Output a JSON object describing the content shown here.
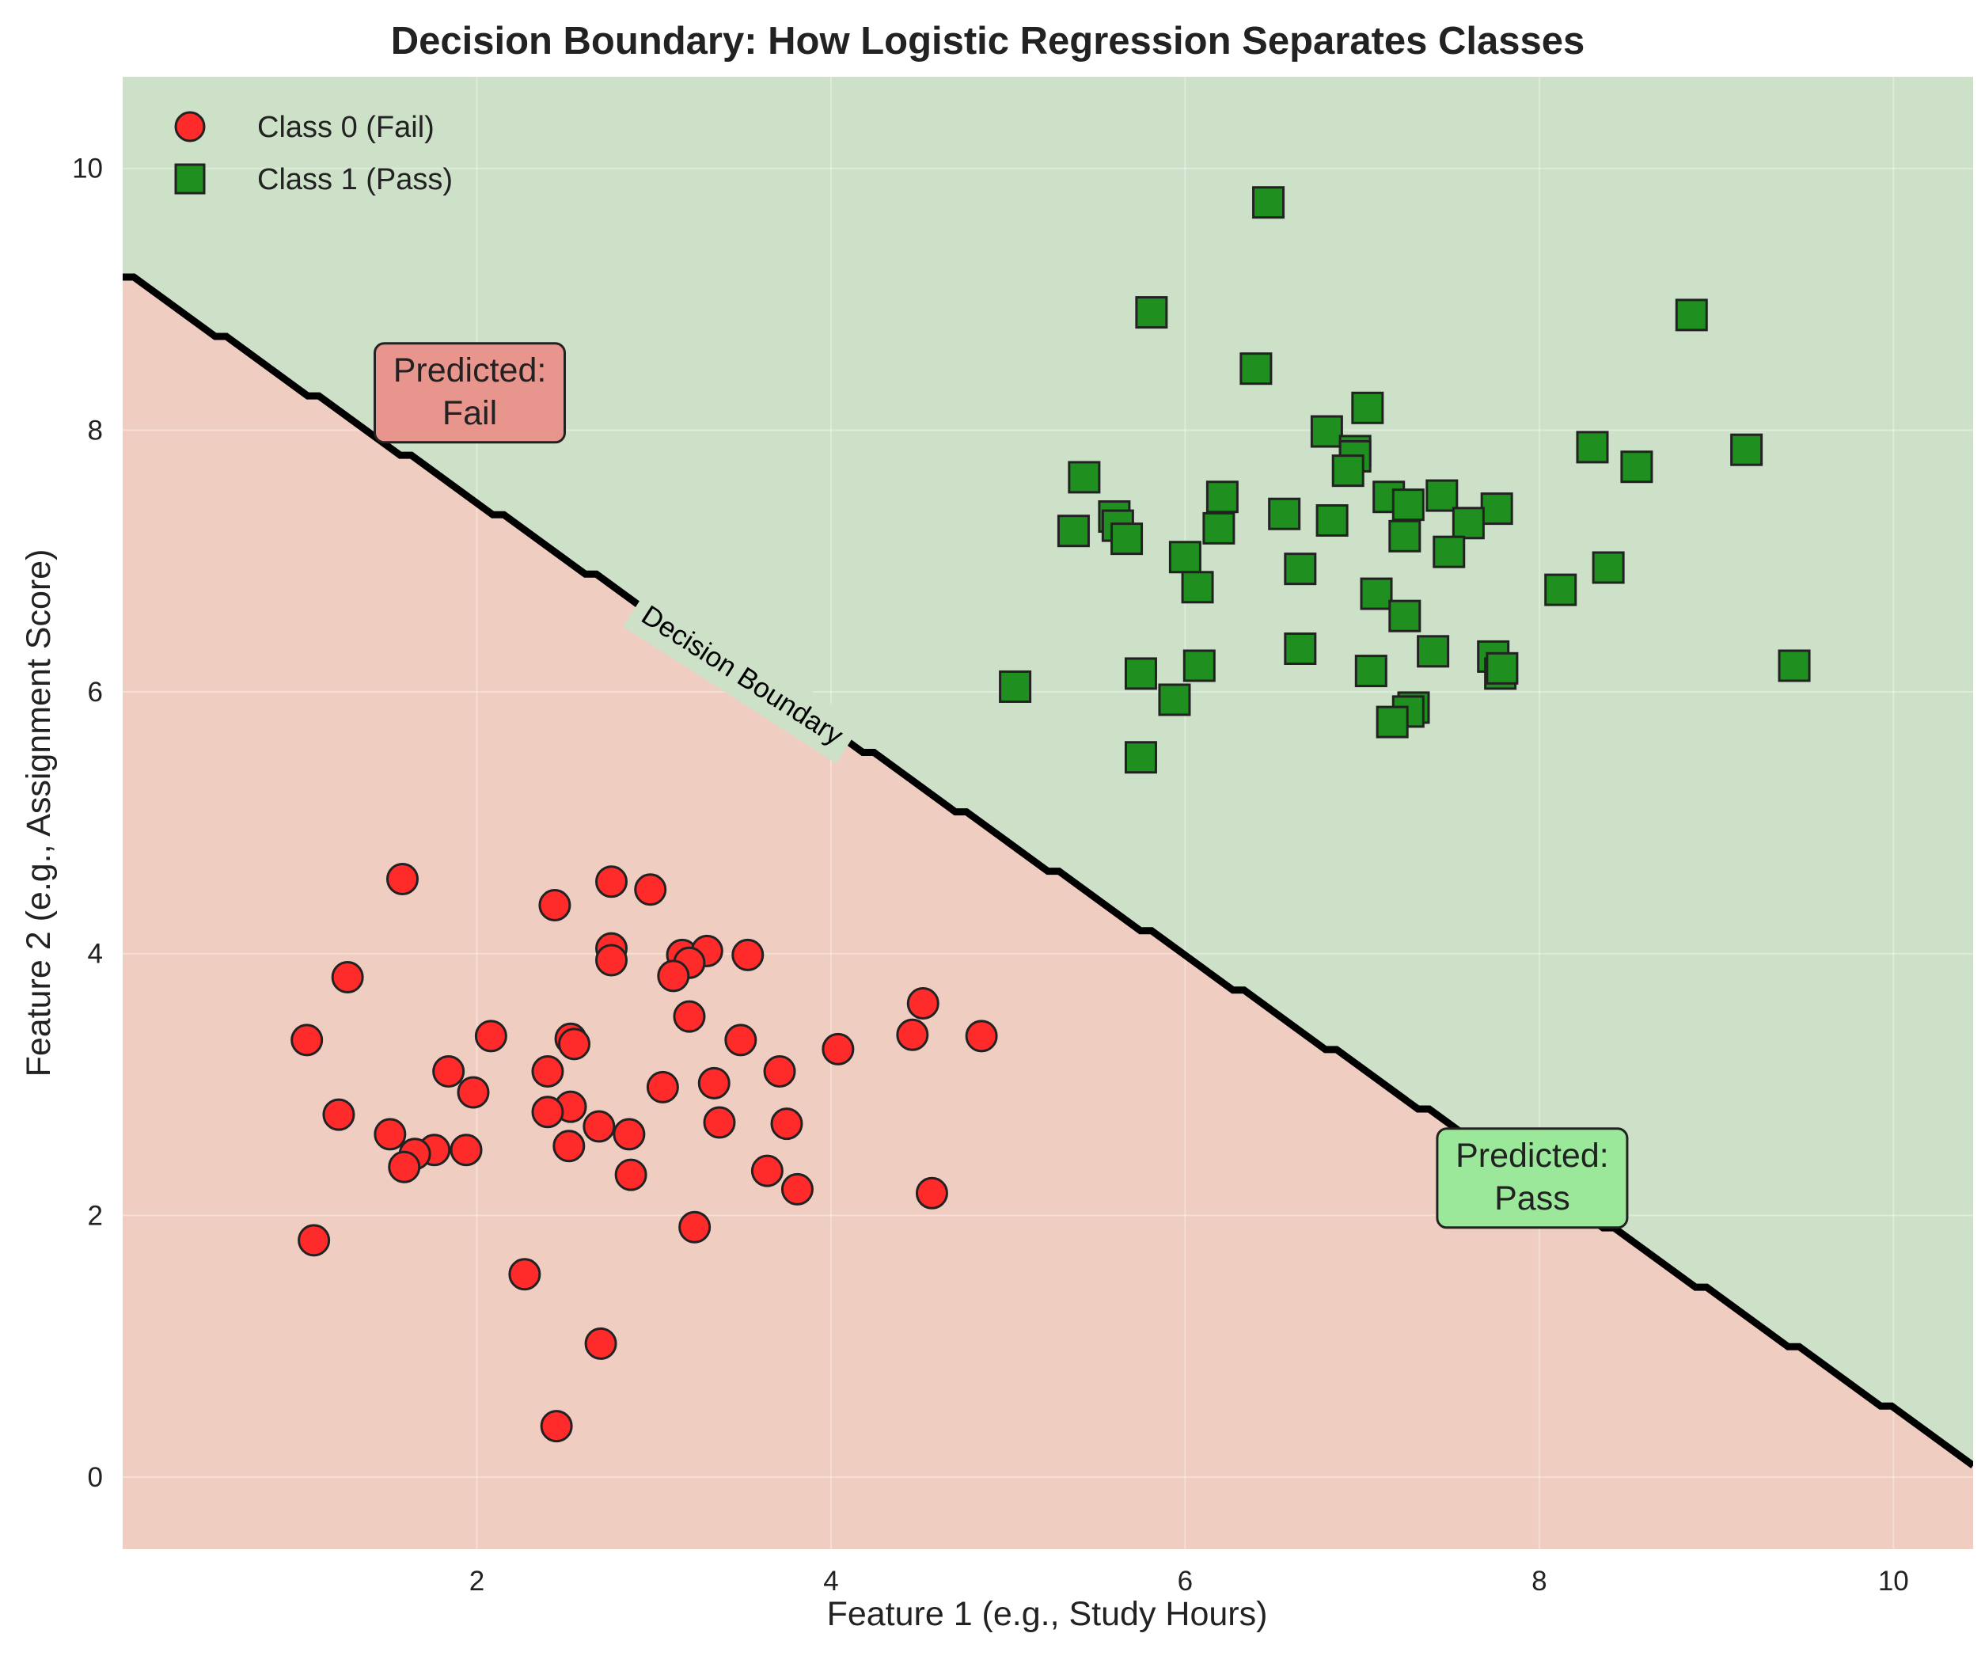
{
  "chart_data": {
    "type": "scatter",
    "title": "Decision Boundary: How Logistic Regression Separates Classes",
    "xlabel": "Feature 1 (e.g., Study Hours)",
    "ylabel": "Feature 2 (e.g., Assignment Score)",
    "xlim": [
      0.0,
      10.45
    ],
    "ylim": [
      -0.55,
      10.7
    ],
    "xticks": [
      2,
      4,
      6,
      8,
      10
    ],
    "yticks": [
      0,
      2,
      4,
      6,
      8,
      10
    ],
    "grid": true,
    "legend_position": "top-left",
    "colors": {
      "fail_region": "#efcdc1",
      "pass_region": "#cde0c8",
      "class0_marker": "#ff2b2b",
      "class1_marker": "#1f8f1f",
      "boundary": "#000000",
      "fail_box": "#e8958e",
      "pass_box": "#9be89b"
    },
    "series": [
      {
        "name": "Class 0 (Fail)",
        "marker": "circle",
        "points": [
          [
            1.58,
            4.57
          ],
          [
            2.76,
            4.55
          ],
          [
            2.98,
            4.49
          ],
          [
            2.44,
            4.37
          ],
          [
            2.76,
            4.04
          ],
          [
            3.16,
            3.99
          ],
          [
            3.3,
            4.02
          ],
          [
            3.53,
            3.99
          ],
          [
            2.76,
            3.95
          ],
          [
            3.2,
            3.93
          ],
          [
            1.27,
            3.82
          ],
          [
            3.11,
            3.83
          ],
          [
            4.52,
            3.62
          ],
          [
            3.2,
            3.52
          ],
          [
            1.04,
            3.34
          ],
          [
            2.08,
            3.37
          ],
          [
            2.53,
            3.35
          ],
          [
            2.55,
            3.31
          ],
          [
            3.49,
            3.34
          ],
          [
            4.46,
            3.38
          ],
          [
            4.85,
            3.37
          ],
          [
            4.04,
            3.27
          ],
          [
            2.4,
            3.1
          ],
          [
            1.84,
            3.1
          ],
          [
            3.71,
            3.1
          ],
          [
            3.34,
            3.01
          ],
          [
            3.05,
            2.98
          ],
          [
            1.98,
            2.94
          ],
          [
            2.53,
            2.83
          ],
          [
            2.4,
            2.79
          ],
          [
            1.22,
            2.77
          ],
          [
            3.37,
            2.71
          ],
          [
            3.75,
            2.7
          ],
          [
            2.69,
            2.68
          ],
          [
            2.86,
            2.62
          ],
          [
            1.51,
            2.62
          ],
          [
            2.52,
            2.53
          ],
          [
            1.76,
            2.5
          ],
          [
            1.94,
            2.5
          ],
          [
            1.65,
            2.47
          ],
          [
            1.59,
            2.37
          ],
          [
            2.87,
            2.31
          ],
          [
            3.64,
            2.34
          ],
          [
            3.81,
            2.2
          ],
          [
            4.57,
            2.17
          ],
          [
            3.23,
            1.91
          ],
          [
            1.08,
            1.81
          ],
          [
            2.27,
            1.55
          ],
          [
            2.7,
            1.02
          ],
          [
            2.45,
            0.39
          ]
        ]
      },
      {
        "name": "Class 1 (Pass)",
        "marker": "square",
        "points": [
          [
            6.47,
            9.74
          ],
          [
            5.81,
            8.9
          ],
          [
            8.86,
            8.88
          ],
          [
            6.4,
            8.47
          ],
          [
            7.03,
            8.17
          ],
          [
            6.8,
            7.99
          ],
          [
            8.3,
            7.87
          ],
          [
            6.96,
            7.84
          ],
          [
            9.17,
            7.85
          ],
          [
            6.96,
            7.8
          ],
          [
            8.55,
            7.72
          ],
          [
            6.92,
            7.69
          ],
          [
            5.43,
            7.64
          ],
          [
            7.15,
            7.49
          ],
          [
            6.21,
            7.49
          ],
          [
            7.45,
            7.5
          ],
          [
            7.26,
            7.43
          ],
          [
            7.76,
            7.4
          ],
          [
            5.6,
            7.34
          ],
          [
            6.56,
            7.36
          ],
          [
            6.83,
            7.31
          ],
          [
            7.6,
            7.29
          ],
          [
            5.62,
            7.27
          ],
          [
            6.19,
            7.25
          ],
          [
            5.37,
            7.23
          ],
          [
            7.24,
            7.19
          ],
          [
            5.67,
            7.17
          ],
          [
            7.49,
            7.07
          ],
          [
            6.0,
            7.03
          ],
          [
            6.65,
            6.94
          ],
          [
            8.39,
            6.95
          ],
          [
            6.07,
            6.8
          ],
          [
            8.12,
            6.78
          ],
          [
            7.08,
            6.75
          ],
          [
            7.24,
            6.58
          ],
          [
            6.65,
            6.33
          ],
          [
            7.4,
            6.31
          ],
          [
            7.74,
            6.27
          ],
          [
            7.78,
            6.14
          ],
          [
            7.79,
            6.18
          ],
          [
            9.44,
            6.2
          ],
          [
            6.08,
            6.2
          ],
          [
            7.05,
            6.16
          ],
          [
            5.75,
            6.14
          ],
          [
            5.04,
            6.04
          ],
          [
            5.94,
            5.94
          ],
          [
            7.29,
            5.88
          ],
          [
            7.26,
            5.85
          ],
          [
            7.17,
            5.77
          ],
          [
            5.75,
            5.5
          ]
        ]
      }
    ],
    "decision_boundary": {
      "label": "Decision Boundary",
      "intercept": 9.17,
      "slope": -0.869
    },
    "annotations": {
      "fail": {
        "line1": "Predicted:",
        "line2": "Fail",
        "x": 1.96,
        "y": 8.3
      },
      "pass": {
        "line1": "Predicted:",
        "line2": "Pass",
        "x": 7.96,
        "y": 2.3
      }
    }
  }
}
